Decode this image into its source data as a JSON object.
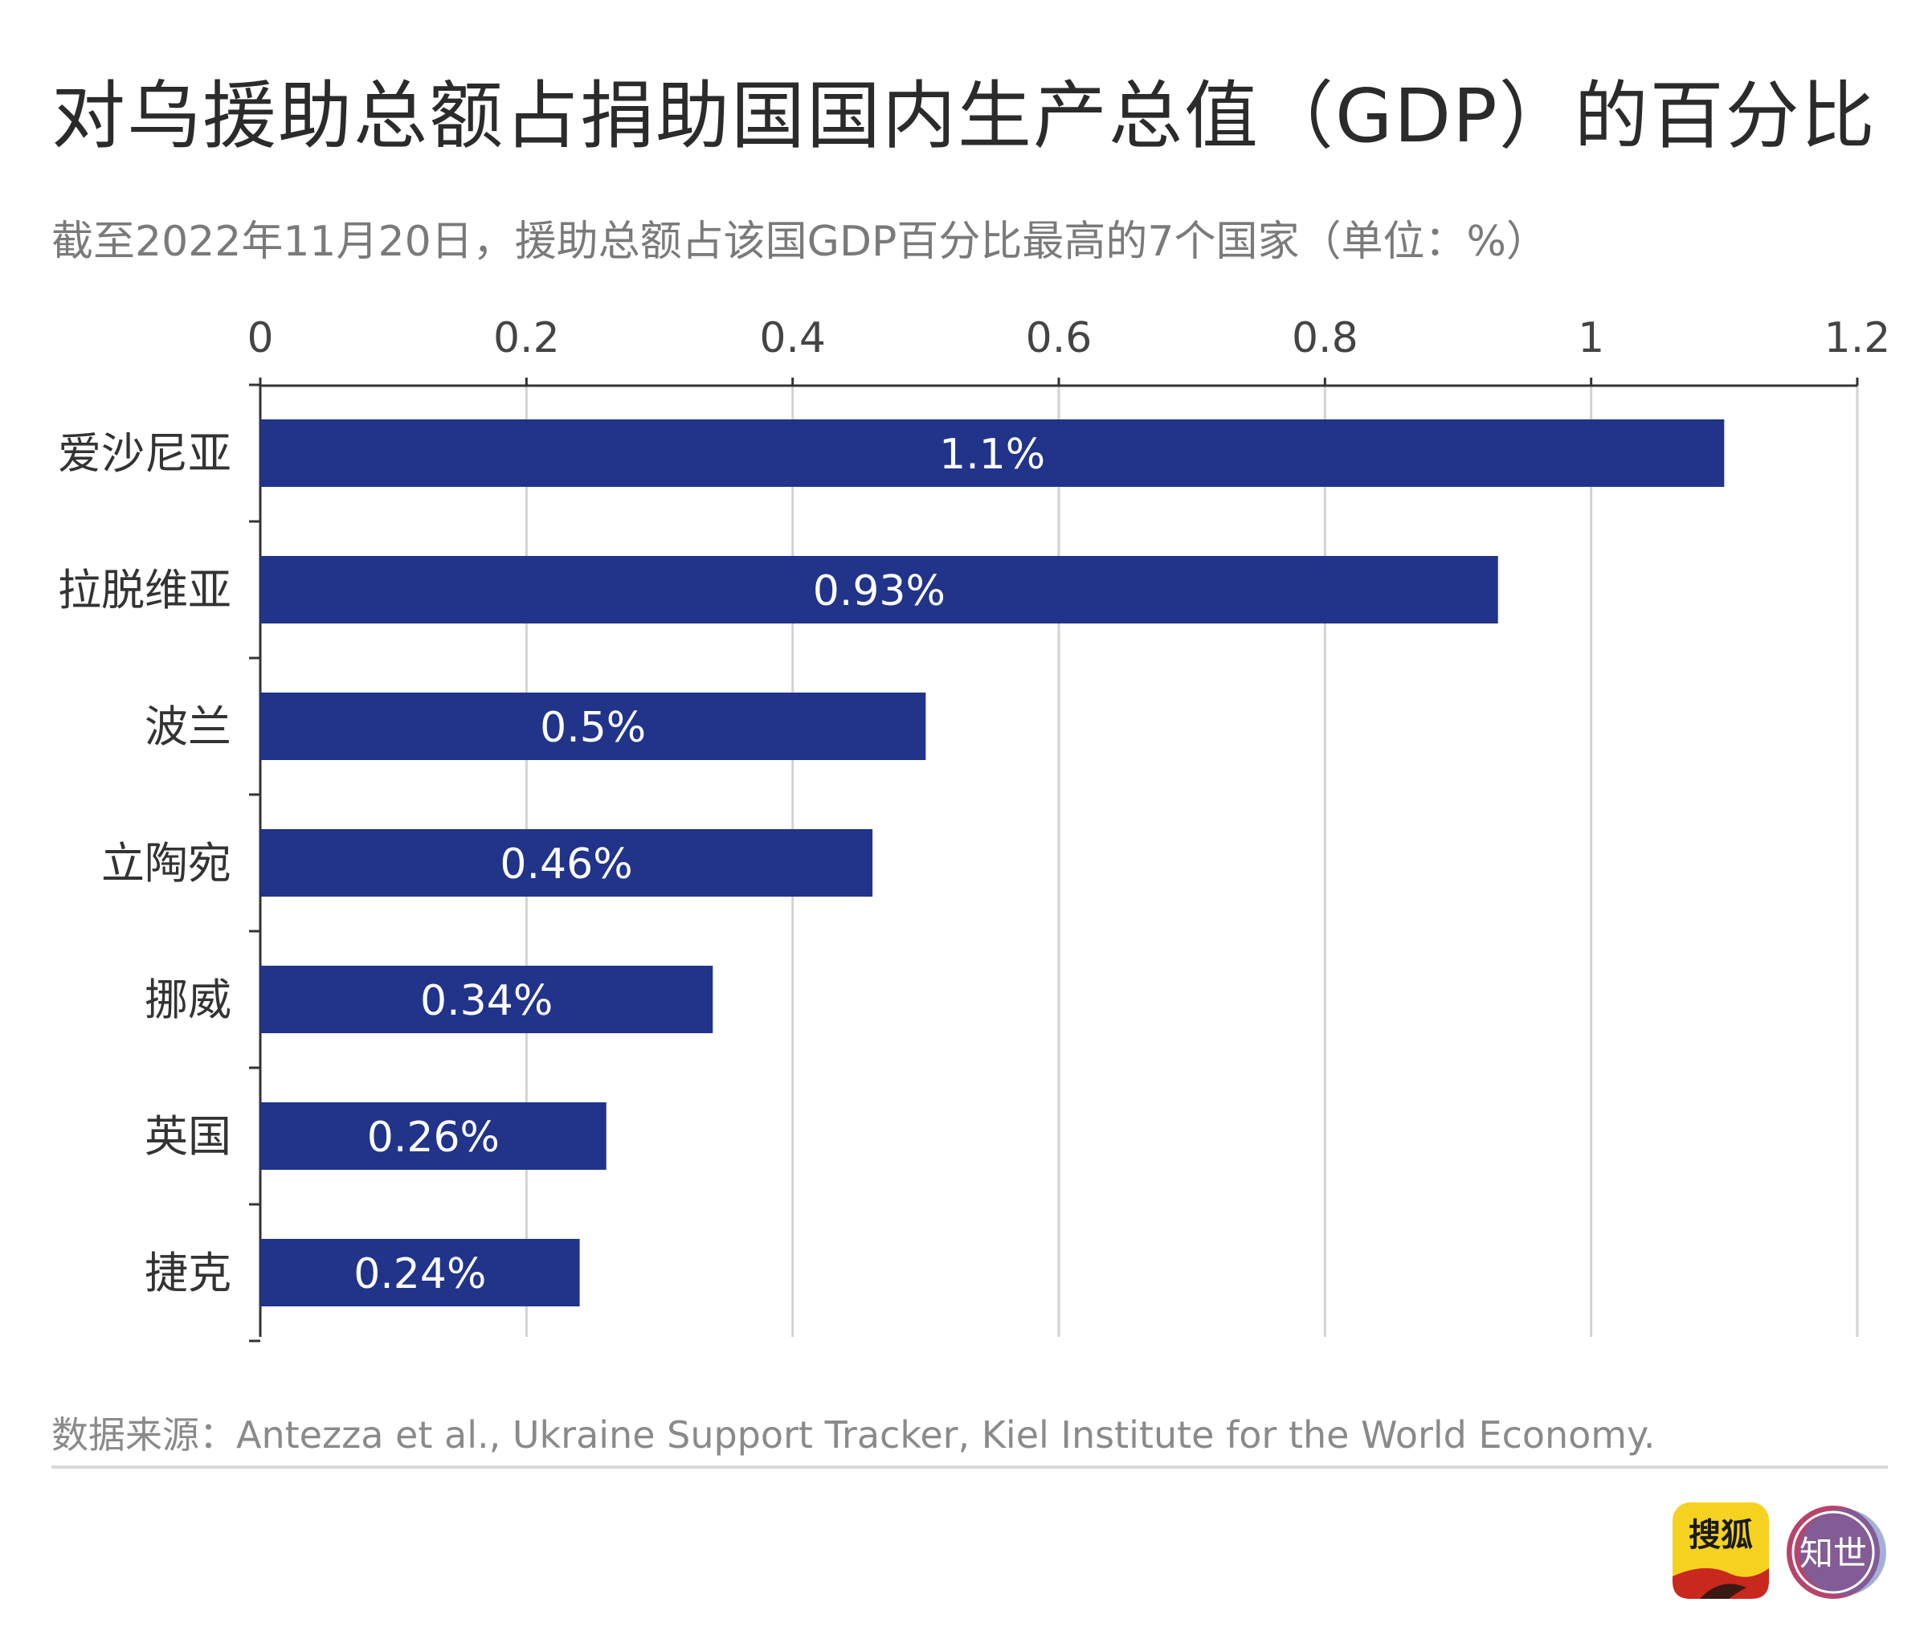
{
  "title": "对乌援助总额占捐助国国内生产总值（GDP）的百分比",
  "subtitle": "截至2022年11月20日，援助总额占该国GDP百分比最高的7个国家（单位：%）",
  "source": "数据来源：Antezza et al., Ukraine Support Tracker, Kiel Institute for the World Economy.",
  "colors": {
    "bar": "#21348a",
    "grid": "#d2d2d2",
    "axis": "#333333",
    "label": "#333333"
  },
  "logos": {
    "sohu": "搜狐",
    "zhishi": "知世"
  },
  "chart_data": {
    "type": "bar",
    "orientation": "horizontal",
    "categories": [
      "爱沙尼亚",
      "拉脱维亚",
      "波兰",
      "立陶宛",
      "挪威",
      "英国",
      "捷克"
    ],
    "values": [
      1.1,
      0.93,
      0.5,
      0.46,
      0.34,
      0.26,
      0.24
    ],
    "data_labels": [
      "1.1%",
      "0.93%",
      "0.5%",
      "0.46%",
      "0.34%",
      "0.26%",
      "0.24%"
    ],
    "xticks": [
      "0",
      "0.2",
      "0.4",
      "0.6",
      "0.8",
      "1",
      "1.2"
    ],
    "xlim": [
      0,
      1.2
    ],
    "grid": true,
    "x_axis_position": "top"
  }
}
